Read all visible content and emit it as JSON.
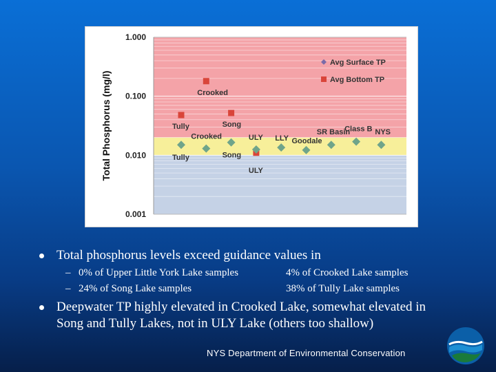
{
  "chart_data": {
    "type": "scatter",
    "ylabel": "Total Phosphorus (mg/l)",
    "yscale": "log",
    "ylim": [
      0.001,
      1.0
    ],
    "yticks": [
      "1.000",
      "0.100",
      "0.010",
      "0.001"
    ],
    "grid": true,
    "legend_position": "top-right",
    "bands": [
      {
        "from": 0.02,
        "to": 1.0,
        "color": "#f4a3a8"
      },
      {
        "from": 0.01,
        "to": 0.02,
        "color": "#f7ef9a"
      },
      {
        "from": 0.001,
        "to": 0.01,
        "color": "#c5d2e6"
      }
    ],
    "series": [
      {
        "name": "Avg Surface TP",
        "marker": "diamond",
        "color": "#6fa48a",
        "points": [
          {
            "x": 1,
            "y": 0.015,
            "label": "Tully"
          },
          {
            "x": 2,
            "y": 0.013,
            "label": "Crooked"
          },
          {
            "x": 3,
            "y": 0.0165,
            "label": "Song"
          },
          {
            "x": 4,
            "y": 0.0125,
            "label": "ULY"
          },
          {
            "x": 5,
            "y": 0.0135,
            "label": "LLY"
          },
          {
            "x": 6,
            "y": 0.0122,
            "label": "Goodale"
          },
          {
            "x": 7,
            "y": 0.015,
            "label": "SR Basin"
          },
          {
            "x": 8,
            "y": 0.017,
            "label": "Class B"
          },
          {
            "x": 9,
            "y": 0.015,
            "label": "NYS"
          }
        ]
      },
      {
        "name": "Avg Bottom TP",
        "marker": "square",
        "color": "#d9453a",
        "points": [
          {
            "x": 1,
            "y": 0.048,
            "label": "Tully"
          },
          {
            "x": 2,
            "y": 0.18,
            "label": "Crooked"
          },
          {
            "x": 3,
            "y": 0.052,
            "label": "Song"
          },
          {
            "x": 4,
            "y": 0.011,
            "label": "ULY"
          }
        ]
      }
    ],
    "legend_marker_colors": {
      "surface": "#7a6aa8",
      "bottom": "#d9453a"
    }
  },
  "bullets": [
    {
      "text": "Total phosphorus levels exceed guidance values in",
      "subs": [
        "0% of Upper Little York Lake samples",
        "4% of Crooked Lake samples",
        "24% of Song Lake samples",
        "38% of Tully Lake samples"
      ]
    },
    {
      "lines": [
        "Deepwater TP highly elevated in Crooked Lake, somewhat elevated in",
        "Song and Tully Lakes, not in ULY Lake (others too shallow)"
      ]
    }
  ],
  "footer": "NYS Department of Environmental Conservation",
  "dash_glyph": "–",
  "colors": {
    "background_top": "#0a6fd6",
    "background_bottom": "#061f4a",
    "logo_outer": "#0b5fa8",
    "logo_water": "#1d8fd4",
    "logo_land": "#1a7a3a"
  }
}
